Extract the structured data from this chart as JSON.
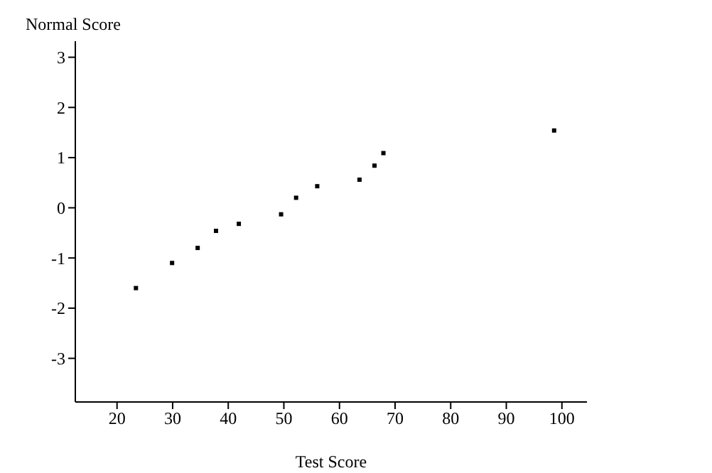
{
  "chart_data": {
    "type": "scatter",
    "xlabel": "Test Score",
    "ylabel": "Normal Score",
    "x": [
      23.4,
      29.9,
      34.5,
      37.8,
      41.9,
      49.5,
      52.2,
      56.0,
      63.6,
      66.3,
      67.9,
      98.6
    ],
    "values": [
      -1.6,
      -1.1,
      -0.8,
      -0.46,
      -0.32,
      -0.13,
      0.2,
      0.43,
      0.56,
      0.84,
      1.09,
      1.54
    ],
    "color": "#000000",
    "marker": "square",
    "xlim": [
      12.5,
      104.5
    ],
    "xticks": [
      20,
      30,
      40,
      50,
      60,
      70,
      80,
      90,
      100
    ],
    "ylim": [
      -3.87,
      3.32
    ],
    "yticks": [
      -3,
      -2,
      -1,
      0,
      1,
      2,
      3
    ],
    "grid": false,
    "legend": false
  }
}
